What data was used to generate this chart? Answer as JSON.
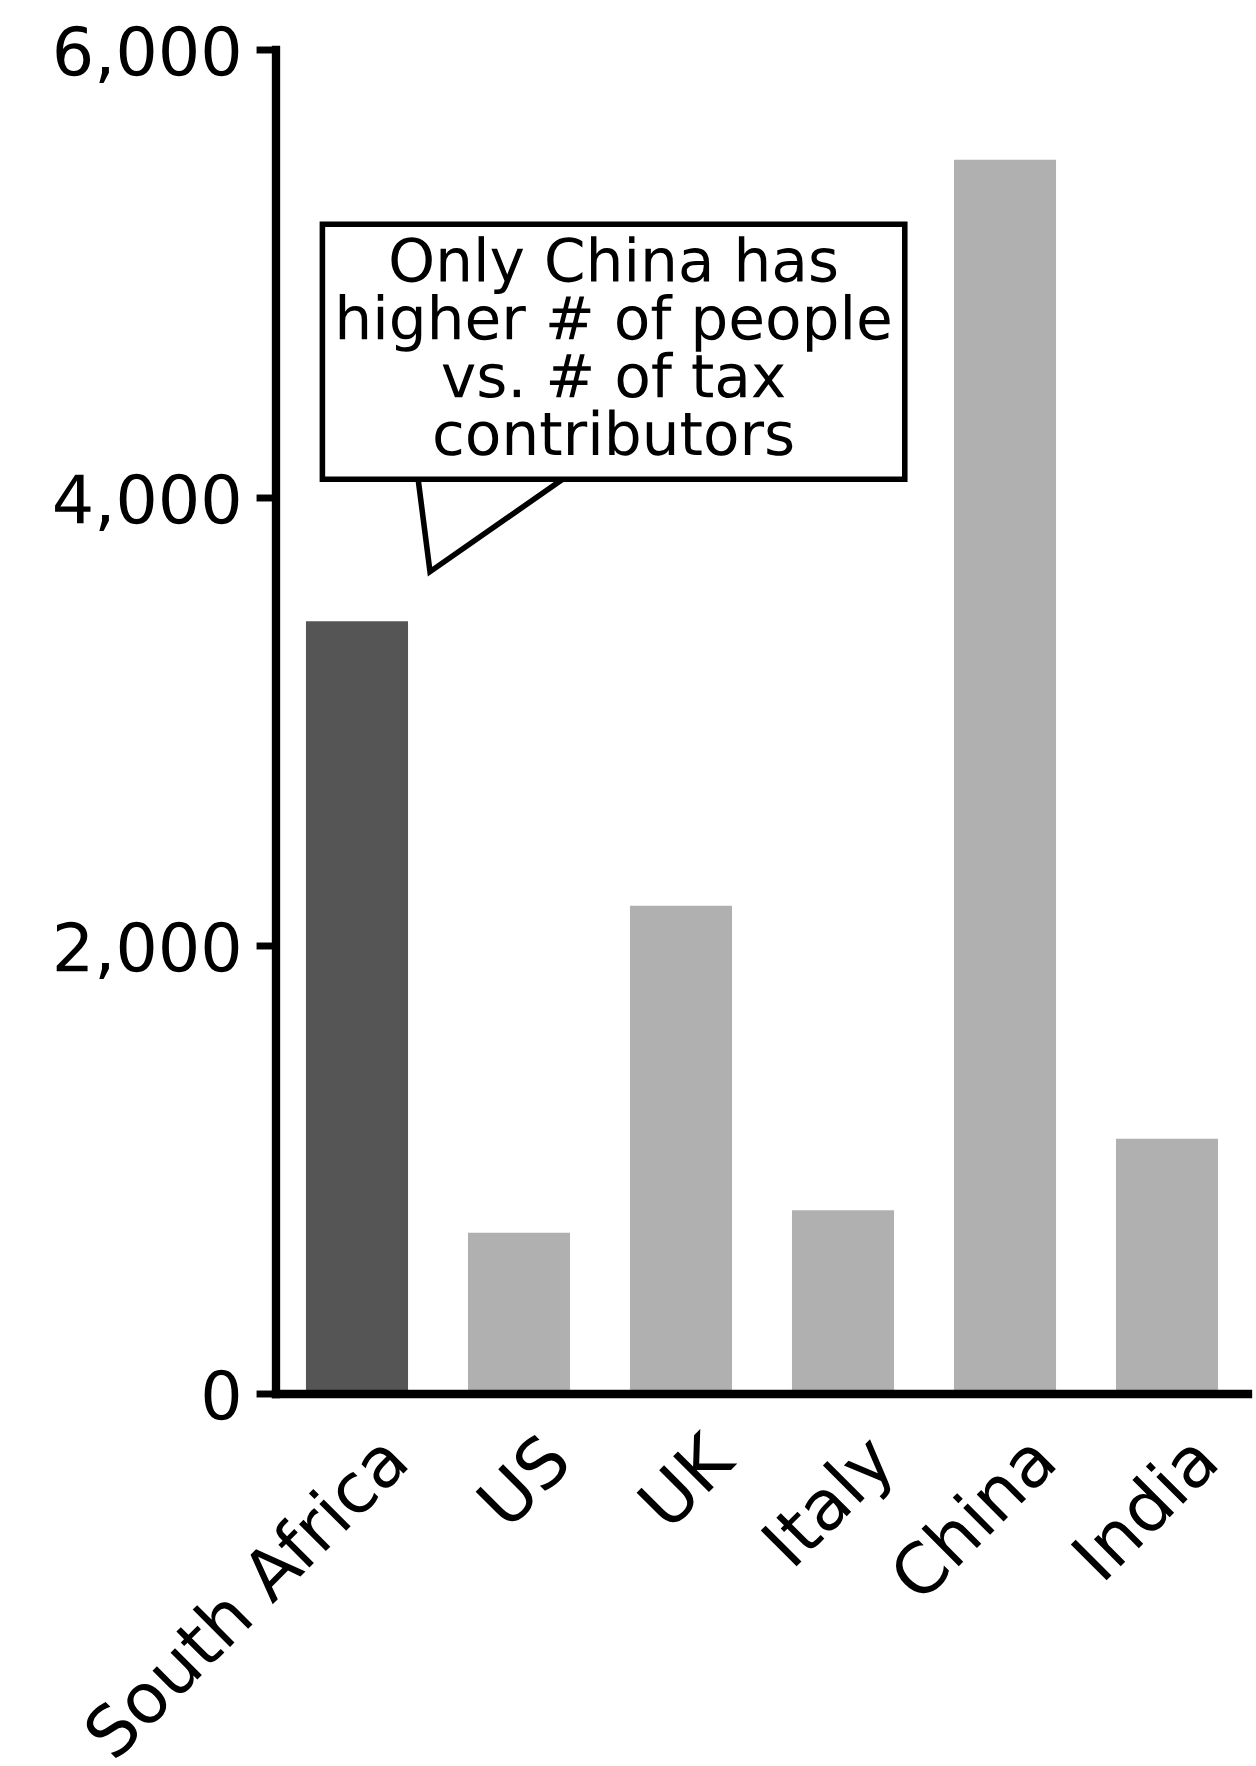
{
  "chart_data": {
    "type": "bar",
    "categories": [
      "South Africa",
      "US",
      "UK",
      "Italy",
      "China",
      "India"
    ],
    "values": [
      3450,
      720,
      2180,
      820,
      5510,
      1140
    ],
    "colors": [
      "#555555",
      "#b0b0b0",
      "#b0b0b0",
      "#b0b0b0",
      "#b0b0b0",
      "#b0b0b0"
    ],
    "ylim": [
      0,
      6000
    ],
    "yticks": [
      0,
      {
        "value": 2000,
        "label": "2,000"
      },
      {
        "value": 4000,
        "label": "4,000"
      },
      {
        "value": 6000,
        "label": "6,000"
      }
    ],
    "annotations": [
      {
        "text": "Only China has\nhigher # of people\nvs. # of tax\ncontributors",
        "x": "South Africa",
        "y": 3450
      }
    ]
  }
}
